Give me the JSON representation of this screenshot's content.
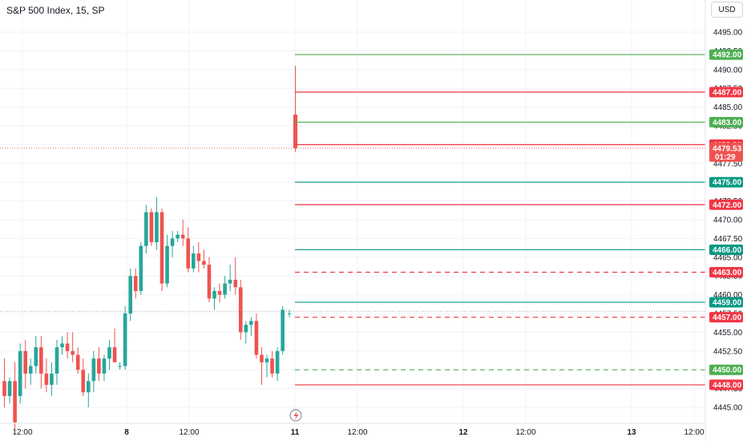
{
  "header": {
    "title": "S&P 500 Index, 15, SP",
    "currency": "USD"
  },
  "colors": {
    "up": "#26a69a",
    "down": "#ef5350",
    "green_line": "#4caf50",
    "teal_line": "#089981",
    "red_line": "#f23645",
    "grid": "#f0f3fa"
  },
  "chart_data": {
    "type": "candlestick",
    "title": "S&P 500 Index, 15, SP",
    "ylim": [
      4442.5,
      4497.5
    ],
    "y_ticks": [
      4445,
      4447.5,
      4450,
      4452.5,
      4455,
      4457.5,
      4460,
      4462.5,
      4465,
      4467.5,
      4470,
      4472.5,
      4475,
      4477.5,
      4480,
      4482.5,
      4485,
      4487.5,
      4490,
      4492.5,
      4495
    ],
    "x_ticks": [
      "12:00",
      "8",
      "12:00",
      "11",
      "12:00",
      "12",
      "12:00",
      "13",
      "12:00"
    ],
    "candles": [
      {
        "o": 4448.5,
        "h": 4451.5,
        "l": 4445.0,
        "c": 4446.5
      },
      {
        "o": 4446.5,
        "h": 4449.0,
        "l": 4445.5,
        "c": 4448.5
      },
      {
        "o": 4448.5,
        "h": 4451.0,
        "l": 4442.0,
        "c": 4443.0
      },
      {
        "o": 4446.5,
        "h": 4453.5,
        "l": 4445.5,
        "c": 4452.5
      },
      {
        "o": 4452.5,
        "h": 4454.0,
        "l": 4447.5,
        "c": 4449.5
      },
      {
        "o": 4449.5,
        "h": 4451.5,
        "l": 4448.0,
        "c": 4450.5
      },
      {
        "o": 4450.5,
        "h": 4454.5,
        "l": 4449.5,
        "c": 4453.0
      },
      {
        "o": 4453.0,
        "h": 4454.5,
        "l": 4447.5,
        "c": 4449.5
      },
      {
        "o": 4449.5,
        "h": 4451.5,
        "l": 4447.0,
        "c": 4448.0
      },
      {
        "o": 4448.0,
        "h": 4451.0,
        "l": 4446.5,
        "c": 4449.5
      },
      {
        "o": 4449.5,
        "h": 4454.0,
        "l": 4448.0,
        "c": 4453.0
      },
      {
        "o": 4453.0,
        "h": 4454.5,
        "l": 4452.0,
        "c": 4453.5
      },
      {
        "o": 4453.5,
        "h": 4455.0,
        "l": 4451.5,
        "c": 4452.5
      },
      {
        "o": 4452.5,
        "h": 4455.0,
        "l": 4451.0,
        "c": 4452.0
      },
      {
        "o": 4452.0,
        "h": 4453.0,
        "l": 4449.5,
        "c": 4450.0
      },
      {
        "o": 4450.0,
        "h": 4451.5,
        "l": 4446.5,
        "c": 4447.0
      },
      {
        "o": 4447.0,
        "h": 4449.5,
        "l": 4445.0,
        "c": 4448.5
      },
      {
        "o": 4448.5,
        "h": 4452.5,
        "l": 4447.0,
        "c": 4451.5
      },
      {
        "o": 4451.5,
        "h": 4453.0,
        "l": 4448.5,
        "c": 4449.5
      },
      {
        "o": 4449.5,
        "h": 4452.0,
        "l": 4448.5,
        "c": 4451.5
      },
      {
        "o": 4451.5,
        "h": 4454.0,
        "l": 4450.0,
        "c": 4453.0
      },
      {
        "o": 4453.0,
        "h": 4455.5,
        "l": 4451.5,
        "c": 4451.0
      },
      {
        "o": 4450.5,
        "h": 4451.0,
        "l": 4450.0,
        "c": 4450.5
      },
      {
        "o": 4450.5,
        "h": 4458.5,
        "l": 4450.0,
        "c": 4457.5
      },
      {
        "o": 4457.5,
        "h": 4463.5,
        "l": 4456.5,
        "c": 4462.5
      },
      {
        "o": 4462.5,
        "h": 4463.5,
        "l": 4459.5,
        "c": 4460.5
      },
      {
        "o": 4460.5,
        "h": 4467.0,
        "l": 4460.0,
        "c": 4466.5
      },
      {
        "o": 4466.5,
        "h": 4472.0,
        "l": 4465.5,
        "c": 4471.0
      },
      {
        "o": 4471.0,
        "h": 4471.5,
        "l": 4466.5,
        "c": 4467.0
      },
      {
        "o": 4467.0,
        "h": 4473.0,
        "l": 4466.0,
        "c": 4471.0
      },
      {
        "o": 4471.0,
        "h": 4471.5,
        "l": 4460.5,
        "c": 4461.5
      },
      {
        "o": 4461.5,
        "h": 4468.0,
        "l": 4461.0,
        "c": 4466.5
      },
      {
        "o": 4466.5,
        "h": 4468.5,
        "l": 4465.0,
        "c": 4467.5
      },
      {
        "o": 4467.5,
        "h": 4468.5,
        "l": 4467.0,
        "c": 4468.0
      },
      {
        "o": 4468.0,
        "h": 4470.0,
        "l": 4466.5,
        "c": 4467.5
      },
      {
        "o": 4467.5,
        "h": 4469.0,
        "l": 4463.0,
        "c": 4463.5
      },
      {
        "o": 4463.5,
        "h": 4466.5,
        "l": 4463.0,
        "c": 4465.5
      },
      {
        "o": 4465.5,
        "h": 4467.0,
        "l": 4463.0,
        "c": 4464.5
      },
      {
        "o": 4464.5,
        "h": 4466.0,
        "l": 4463.5,
        "c": 4464.0
      },
      {
        "o": 4464.0,
        "h": 4465.0,
        "l": 4459.0,
        "c": 4459.5
      },
      {
        "o": 4459.5,
        "h": 4461.0,
        "l": 4458.0,
        "c": 4460.5
      },
      {
        "o": 4460.5,
        "h": 4461.5,
        "l": 4459.0,
        "c": 4460.0
      },
      {
        "o": 4460.0,
        "h": 4462.5,
        "l": 4459.5,
        "c": 4461.5
      },
      {
        "o": 4461.5,
        "h": 4464.0,
        "l": 4460.5,
        "c": 4462.0
      },
      {
        "o": 4462.0,
        "h": 4465.0,
        "l": 4460.0,
        "c": 4461.0
      },
      {
        "o": 4461.0,
        "h": 4462.0,
        "l": 4454.0,
        "c": 4455.0
      },
      {
        "o": 4455.0,
        "h": 4456.5,
        "l": 4453.5,
        "c": 4456.0
      },
      {
        "o": 4456.0,
        "h": 4457.0,
        "l": 4454.5,
        "c": 4456.5
      },
      {
        "o": 4456.5,
        "h": 4457.5,
        "l": 4451.5,
        "c": 4452.0
      },
      {
        "o": 4452.0,
        "h": 4453.0,
        "l": 4448.0,
        "c": 4451.0
      },
      {
        "o": 4451.0,
        "h": 4452.0,
        "l": 4449.0,
        "c": 4451.5
      },
      {
        "o": 4451.5,
        "h": 4452.5,
        "l": 4449.0,
        "c": 4449.5
      },
      {
        "o": 4449.5,
        "h": 4453.0,
        "l": 4448.5,
        "c": 4452.5
      },
      {
        "o": 4452.5,
        "h": 4458.5,
        "l": 4452.0,
        "c": 4458.0
      }
    ],
    "candles_today": [
      {
        "o": 4484.0,
        "h": 4490.5,
        "l": 4479.0,
        "c": 4479.53
      },
      {
        "o": 4457.5,
        "h": 4458.0,
        "l": 4457.0,
        "c": 4457.5
      }
    ],
    "levels": [
      {
        "price": 4492.0,
        "label": "4492.00",
        "kind": "green",
        "dashed": false
      },
      {
        "price": 4487.0,
        "label": "4487.00",
        "kind": "red",
        "dashed": false
      },
      {
        "price": 4483.0,
        "label": "4483.00",
        "kind": "green",
        "dashed": false
      },
      {
        "price": 4480.0,
        "label": "4480.00",
        "kind": "red",
        "dashed": false
      },
      {
        "price": 4475.0,
        "label": "4475.00",
        "kind": "teal",
        "dashed": false
      },
      {
        "price": 4472.0,
        "label": "4472.00",
        "kind": "red",
        "dashed": false
      },
      {
        "price": 4466.0,
        "label": "4466.00",
        "kind": "teal",
        "dashed": false
      },
      {
        "price": 4463.0,
        "label": "4463.00",
        "kind": "red",
        "dashed": true
      },
      {
        "price": 4459.0,
        "label": "4459.00",
        "kind": "teal",
        "dashed": false
      },
      {
        "price": 4457.0,
        "label": "4457.00",
        "kind": "red",
        "dashed": true
      },
      {
        "price": 4450.0,
        "label": "4450.00",
        "kind": "green",
        "dashed": true
      },
      {
        "price": 4448.0,
        "label": "4448.00",
        "kind": "red",
        "dashed": false
      }
    ],
    "last_price": {
      "value": 4479.53,
      "label": "4479.53",
      "countdown": "01:29"
    },
    "prev_close": 4457.8
  }
}
